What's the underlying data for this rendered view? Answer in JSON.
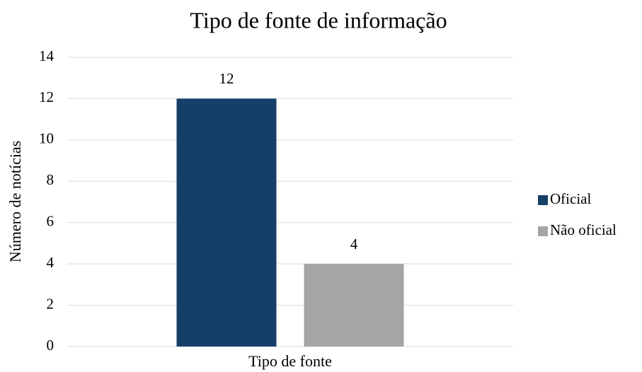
{
  "chart_data": {
    "type": "bar",
    "title": "Tipo de fonte de informação",
    "x_label": "Tipo de fonte",
    "y_label": "Número de notícias",
    "categories": [
      "Tipo de fonte"
    ],
    "series": [
      {
        "name": "Oficial",
        "color": "#153e68",
        "values": [
          12
        ]
      },
      {
        "name": "Não oficial",
        "color": "#a5a5a5",
        "values": [
          4
        ]
      }
    ],
    "ylim": [
      0,
      14
    ],
    "yticks": [
      0,
      2,
      4,
      6,
      8,
      10,
      12,
      14
    ],
    "grid": true,
    "legend": "right"
  }
}
